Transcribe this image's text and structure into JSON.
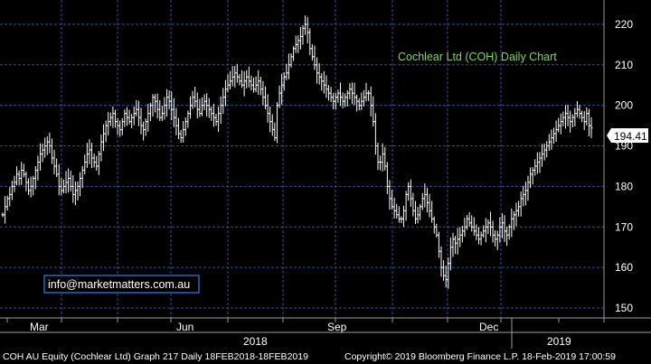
{
  "chart_data": {
    "type": "ohlc",
    "title": "Cochlear Ltd (COH) Daily Chart",
    "ylim": [
      148,
      226
    ],
    "y_ticks": [
      150,
      160,
      170,
      180,
      190,
      200,
      210,
      220
    ],
    "x_ticks": [
      "Mar",
      "Jun",
      "Sep",
      "Dec"
    ],
    "year_labels": [
      "2018",
      "2019"
    ],
    "last_price": "194.41",
    "grid": true,
    "colors": {
      "background": "#000000",
      "grid": "#2b4f96",
      "bars": "#ffffff",
      "title": "#7fd65a",
      "email_border": "#2b62c4"
    },
    "close_series": [
      173,
      175,
      177,
      178,
      180,
      181,
      183,
      182,
      184,
      183,
      181,
      179,
      180,
      182,
      184,
      186,
      188,
      189,
      190,
      191,
      190,
      187,
      185,
      183,
      180,
      179,
      180,
      181,
      182,
      180,
      178,
      179,
      180,
      182,
      184,
      186,
      188,
      189,
      187,
      186,
      185,
      188,
      191,
      193,
      195,
      196,
      197,
      198,
      196,
      195,
      194,
      196,
      198,
      197,
      196,
      197,
      198,
      199,
      197,
      195,
      194,
      196,
      198,
      200,
      202,
      201,
      199,
      197,
      198,
      200,
      202,
      201,
      199,
      197,
      195,
      193,
      192,
      194,
      196,
      198,
      200,
      202,
      201,
      199,
      198,
      200,
      201,
      200,
      199,
      198,
      197,
      196,
      198,
      200,
      202,
      204,
      205,
      206,
      207,
      208,
      207,
      206,
      205,
      206,
      207,
      206,
      205,
      204,
      205,
      206,
      204,
      202,
      200,
      198,
      196,
      194,
      192,
      200,
      203,
      205,
      207,
      208,
      210,
      212,
      214,
      215,
      216,
      217,
      219,
      220,
      218,
      214,
      212,
      210,
      208,
      207,
      206,
      205,
      204,
      203,
      202,
      201,
      202,
      203,
      202,
      201,
      202,
      203,
      204,
      203,
      202,
      201,
      200,
      201,
      202,
      203,
      203,
      200,
      196,
      190,
      186,
      186,
      188,
      185,
      180,
      177,
      175,
      174,
      173,
      172,
      172,
      174,
      178,
      180,
      177,
      174,
      172,
      173,
      175,
      177,
      178,
      176,
      174,
      172,
      170,
      168,
      164,
      160,
      158,
      157,
      161,
      165,
      167,
      166,
      167,
      168,
      169,
      170,
      172,
      171,
      170,
      169,
      168,
      167,
      168,
      169,
      170,
      171,
      170,
      168,
      167,
      168,
      170,
      171,
      169,
      168,
      170,
      172,
      173,
      174,
      175,
      177,
      178,
      179,
      181,
      183,
      184,
      185,
      186,
      187,
      188,
      189,
      190,
      191,
      192,
      193,
      194,
      195,
      196,
      197,
      198,
      197,
      196,
      197,
      198,
      199,
      198,
      197,
      196,
      198,
      195,
      194.41
    ]
  },
  "footer": {
    "left_text": "COH AU Equity (Cochlear Ltd) Graph 217  Daily 18FEB2018-18FEB2019",
    "right_text": "Copyright© 2019 Bloomberg Finance L.P.     18-Feb-2019 17:00:59"
  },
  "email": "info@marketmatters.com.au"
}
